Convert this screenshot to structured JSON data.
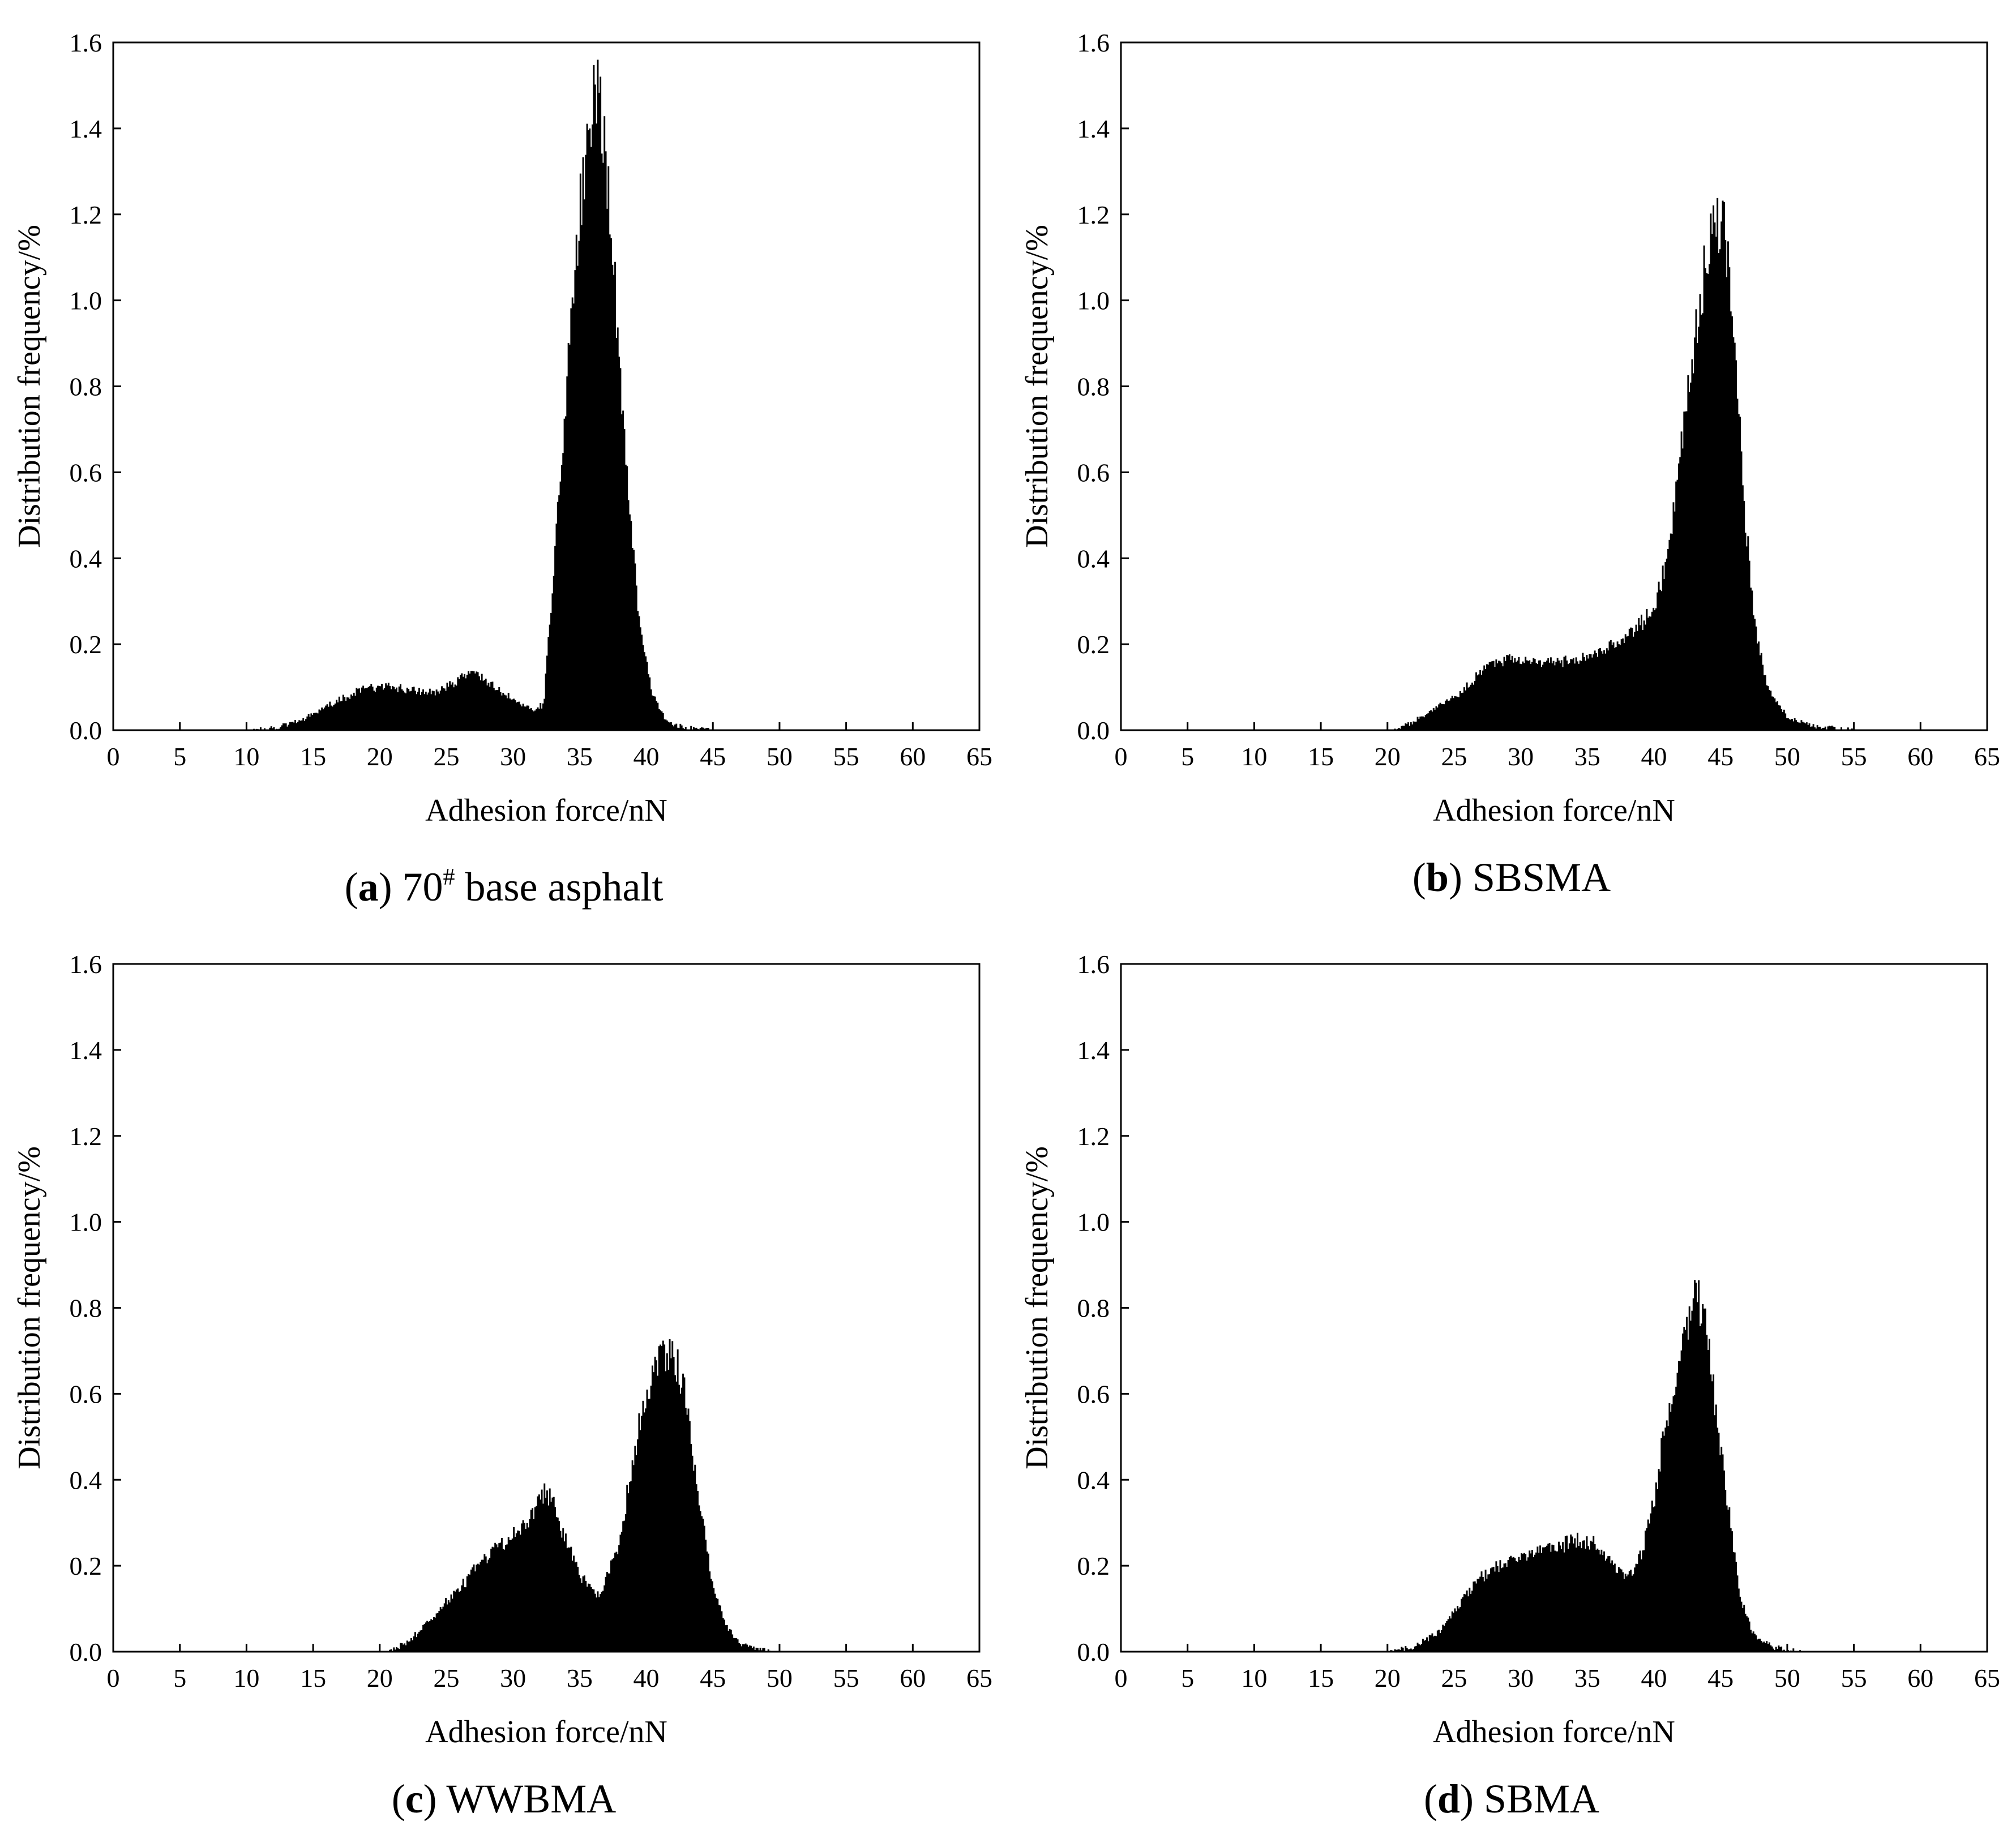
{
  "chart_data": [
    {
      "id": "a",
      "type": "bar",
      "title": "",
      "caption": {
        "letter": "a",
        "text": "70",
        "superscript": "#",
        "suffix": " base asphalt"
      },
      "xlabel": "Adhesion force/nN",
      "ylabel": "Distribution frequency/%",
      "xlim": [
        0,
        65
      ],
      "ylim": [
        0,
        1.6
      ],
      "xticks": [
        "0",
        "5",
        "10",
        "15",
        "20",
        "25",
        "30",
        "35",
        "40",
        "45",
        "50",
        "55",
        "60",
        "65"
      ],
      "yticks": [
        "0.0",
        "0.2",
        "0.4",
        "0.6",
        "0.8",
        "1.0",
        "1.2",
        "1.4",
        "1.6"
      ],
      "grid": false,
      "bin_width": 0.1,
      "bar_color": "#000000",
      "profile": [
        [
          10,
          0.0
        ],
        [
          12,
          0.005
        ],
        [
          14,
          0.02
        ],
        [
          15,
          0.04
        ],
        [
          17,
          0.07
        ],
        [
          19,
          0.1
        ],
        [
          21,
          0.1
        ],
        [
          23,
          0.09
        ],
        [
          24.5,
          0.09
        ],
        [
          26,
          0.12
        ],
        [
          27,
          0.14
        ],
        [
          28.5,
          0.1
        ],
        [
          30,
          0.07
        ],
        [
          31.5,
          0.05
        ],
        [
          32.3,
          0.06
        ],
        [
          33,
          0.35
        ],
        [
          34,
          0.8
        ],
        [
          35,
          1.2
        ],
        [
          35.8,
          1.4
        ],
        [
          36.3,
          1.5
        ],
        [
          36.8,
          1.4
        ],
        [
          37.5,
          1.1
        ],
        [
          38.5,
          0.6
        ],
        [
          39.5,
          0.25
        ],
        [
          40.5,
          0.08
        ],
        [
          41.5,
          0.02
        ],
        [
          43,
          0.005
        ],
        [
          45,
          0.0
        ]
      ]
    },
    {
      "id": "b",
      "type": "bar",
      "title": "",
      "caption": {
        "letter": "b",
        "text": "SBSMA",
        "superscript": "",
        "suffix": ""
      },
      "xlabel": "Adhesion force/nN",
      "ylabel": "Distribution frequency/%",
      "xlim": [
        0,
        65
      ],
      "ylim": [
        0,
        1.6
      ],
      "xticks": [
        "0",
        "5",
        "10",
        "15",
        "20",
        "25",
        "30",
        "35",
        "40",
        "45",
        "50",
        "55",
        "60",
        "65"
      ],
      "yticks": [
        "0.0",
        "0.2",
        "0.4",
        "0.6",
        "0.8",
        "1.0",
        "1.2",
        "1.4",
        "1.6"
      ],
      "grid": false,
      "bin_width": 0.1,
      "bar_color": "#000000",
      "profile": [
        [
          20.5,
          0.0
        ],
        [
          22,
          0.02
        ],
        [
          24,
          0.06
        ],
        [
          26,
          0.1
        ],
        [
          27,
          0.14
        ],
        [
          29,
          0.17
        ],
        [
          31,
          0.16
        ],
        [
          33,
          0.16
        ],
        [
          35,
          0.17
        ],
        [
          37,
          0.2
        ],
        [
          38.5,
          0.23
        ],
        [
          40,
          0.28
        ],
        [
          41,
          0.4
        ],
        [
          42,
          0.65
        ],
        [
          43,
          0.9
        ],
        [
          44,
          1.1
        ],
        [
          44.7,
          1.2
        ],
        [
          45.3,
          1.15
        ],
        [
          46,
          0.95
        ],
        [
          46.7,
          0.55
        ],
        [
          47.5,
          0.25
        ],
        [
          48.5,
          0.1
        ],
        [
          50,
          0.03
        ],
        [
          52,
          0.01
        ],
        [
          55,
          0.0
        ]
      ]
    },
    {
      "id": "c",
      "type": "bar",
      "title": "",
      "caption": {
        "letter": "c",
        "text": "WWBMA",
        "superscript": "",
        "suffix": ""
      },
      "xlabel": "Adhesion force/nN",
      "ylabel": "Distribution frequency/%",
      "xlim": [
        0,
        65
      ],
      "ylim": [
        0,
        1.6
      ],
      "xticks": [
        "0",
        "5",
        "10",
        "15",
        "20",
        "25",
        "30",
        "35",
        "40",
        "45",
        "50",
        "55",
        "60",
        "65"
      ],
      "yticks": [
        "0.0",
        "0.2",
        "0.4",
        "0.6",
        "0.8",
        "1.0",
        "1.2",
        "1.4",
        "1.6"
      ],
      "grid": false,
      "bin_width": 0.1,
      "bar_color": "#000000",
      "profile": [
        [
          20.5,
          0.0
        ],
        [
          22,
          0.02
        ],
        [
          24,
          0.08
        ],
        [
          26,
          0.15
        ],
        [
          28,
          0.22
        ],
        [
          30,
          0.27
        ],
        [
          31.5,
          0.32
        ],
        [
          32.5,
          0.38
        ],
        [
          33.5,
          0.3
        ],
        [
          35,
          0.18
        ],
        [
          36.5,
          0.13
        ],
        [
          38,
          0.25
        ],
        [
          39,
          0.45
        ],
        [
          40,
          0.6
        ],
        [
          41,
          0.68
        ],
        [
          42,
          0.7
        ],
        [
          43,
          0.58
        ],
        [
          44,
          0.35
        ],
        [
          45,
          0.15
        ],
        [
          46,
          0.06
        ],
        [
          47,
          0.02
        ],
        [
          48.5,
          0.005
        ],
        [
          50,
          0.0
        ]
      ]
    },
    {
      "id": "d",
      "type": "bar",
      "title": "",
      "caption": {
        "letter": "d",
        "text": "SBMA",
        "superscript": "",
        "suffix": ""
      },
      "xlabel": "Adhesion force/nN",
      "ylabel": "Distribution frequency/%",
      "xlim": [
        0,
        65
      ],
      "ylim": [
        0,
        1.6
      ],
      "xticks": [
        "0",
        "5",
        "10",
        "15",
        "20",
        "25",
        "30",
        "35",
        "40",
        "45",
        "50",
        "55",
        "60",
        "65"
      ],
      "yticks": [
        "0.0",
        "0.2",
        "0.4",
        "0.6",
        "0.8",
        "1.0",
        "1.2",
        "1.4",
        "1.6"
      ],
      "grid": false,
      "bin_width": 0.1,
      "bar_color": "#000000",
      "profile": [
        [
          20,
          0.0
        ],
        [
          22,
          0.01
        ],
        [
          24,
          0.05
        ],
        [
          26,
          0.14
        ],
        [
          28,
          0.2
        ],
        [
          30,
          0.22
        ],
        [
          32,
          0.24
        ],
        [
          34,
          0.26
        ],
        [
          35.5,
          0.25
        ],
        [
          37,
          0.2
        ],
        [
          38,
          0.18
        ],
        [
          39,
          0.22
        ],
        [
          40,
          0.35
        ],
        [
          41,
          0.55
        ],
        [
          42,
          0.72
        ],
        [
          43,
          0.82
        ],
        [
          43.7,
          0.8
        ],
        [
          44.5,
          0.6
        ],
        [
          45.5,
          0.35
        ],
        [
          46.5,
          0.12
        ],
        [
          47.5,
          0.04
        ],
        [
          49,
          0.01
        ],
        [
          51,
          0.0
        ]
      ]
    }
  ]
}
